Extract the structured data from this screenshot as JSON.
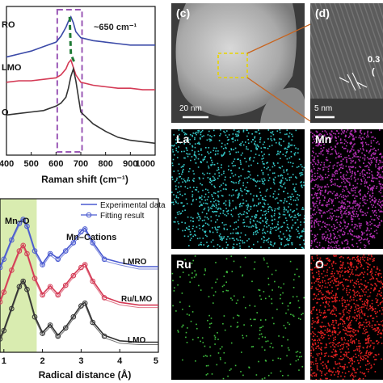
{
  "chart_data": [
    {
      "panel": "raman",
      "type": "line",
      "xlabel": "Raman shift (cm⁻¹)",
      "xlim": [
        400,
        1000
      ],
      "x_ticks": [
        "400",
        "500",
        "600",
        "700",
        "800",
        "900",
        "1000"
      ],
      "annotation": "~650 cm⁻¹",
      "series": [
        {
          "name": "LMRO",
          "color": "#3b4aa8",
          "x": [
            400,
            450,
            500,
            550,
            600,
            620,
            640,
            650,
            660,
            670,
            680,
            700,
            750,
            800,
            850,
            900,
            950,
            1000
          ],
          "y": [
            0.66,
            0.68,
            0.7,
            0.73,
            0.76,
            0.8,
            0.86,
            0.9,
            0.93,
            0.89,
            0.83,
            0.79,
            0.77,
            0.76,
            0.75,
            0.74,
            0.74,
            0.74
          ]
        },
        {
          "name": "Ru/LMO",
          "color": "#d43a55",
          "x": [
            400,
            450,
            500,
            550,
            600,
            620,
            640,
            650,
            660,
            670,
            680,
            700,
            750,
            800,
            850,
            900,
            950,
            1000
          ],
          "y": [
            0.49,
            0.5,
            0.5,
            0.51,
            0.52,
            0.54,
            0.58,
            0.62,
            0.64,
            0.59,
            0.54,
            0.49,
            0.47,
            0.46,
            0.45,
            0.45,
            0.44,
            0.44
          ]
        },
        {
          "name": "LMO",
          "color": "#333333",
          "x": [
            400,
            450,
            500,
            550,
            600,
            620,
            640,
            650,
            660,
            670,
            680,
            700,
            750,
            800,
            850,
            900,
            950,
            1000
          ],
          "y": [
            0.27,
            0.28,
            0.29,
            0.3,
            0.33,
            0.35,
            0.39,
            0.45,
            0.53,
            0.58,
            0.5,
            0.29,
            0.21,
            0.16,
            0.12,
            0.1,
            0.09,
            0.08
          ]
        }
      ],
      "highlight_range": [
        605,
        705
      ],
      "peak_marker_x": [
        655,
        660,
        675
      ],
      "colors": {
        "box": "#9b59b6",
        "marker": "#1e7a34"
      }
    },
    {
      "panel": "exafs",
      "type": "line",
      "xlabel": "Radical distance (Å)",
      "xlim": [
        0.9,
        5
      ],
      "x_ticks": [
        "1",
        "2",
        "3",
        "4",
        "5"
      ],
      "legend": [
        "Experimental data",
        "Fitting result"
      ],
      "legend_position": "top-right",
      "region_labels": [
        "Mn–O",
        "Mn–Cations"
      ],
      "shaded_range": [
        0.9,
        1.85
      ],
      "series": [
        {
          "name": "LMRO",
          "color": "#4a5ad0",
          "x": [
            0.9,
            1.0,
            1.2,
            1.4,
            1.5,
            1.6,
            1.8,
            2.0,
            2.2,
            2.4,
            2.6,
            2.8,
            3.0,
            3.1,
            3.3,
            3.6,
            4.0,
            4.5,
            5.0
          ],
          "y": [
            0.6,
            0.66,
            0.8,
            0.92,
            0.95,
            0.9,
            0.72,
            0.62,
            0.7,
            0.66,
            0.72,
            0.78,
            0.86,
            0.88,
            0.78,
            0.66,
            0.63,
            0.6,
            0.6
          ]
        },
        {
          "name": "Ru/LMO",
          "color": "#d43a55",
          "x": [
            0.9,
            1.0,
            1.2,
            1.4,
            1.5,
            1.6,
            1.8,
            2.0,
            2.2,
            2.4,
            2.6,
            2.8,
            3.0,
            3.1,
            3.3,
            3.6,
            4.0,
            4.5,
            5.0
          ],
          "y": [
            0.35,
            0.42,
            0.58,
            0.72,
            0.76,
            0.7,
            0.52,
            0.4,
            0.46,
            0.4,
            0.47,
            0.54,
            0.6,
            0.62,
            0.5,
            0.38,
            0.34,
            0.32,
            0.32
          ]
        },
        {
          "name": "LMO",
          "color": "#333333",
          "x": [
            0.9,
            1.0,
            1.2,
            1.4,
            1.5,
            1.6,
            1.8,
            2.0,
            2.2,
            2.4,
            2.6,
            2.8,
            3.0,
            3.1,
            3.3,
            3.6,
            4.0,
            4.5,
            5.0
          ],
          "y": [
            0.08,
            0.14,
            0.3,
            0.46,
            0.5,
            0.44,
            0.24,
            0.12,
            0.18,
            0.1,
            0.16,
            0.24,
            0.32,
            0.34,
            0.2,
            0.1,
            0.06,
            0.05,
            0.05
          ]
        }
      ],
      "colors": {
        "shade": "#d9ecb0"
      }
    }
  ],
  "micrographs": {
    "c_label": "(c)",
    "c_scale": "20 nm",
    "d_label": "(d)",
    "d_scale": "5 nm",
    "d_spacing_label": "0.3",
    "d_spacing_paren": "(",
    "maps": [
      {
        "label": "La",
        "color": "#35c8c8",
        "dot_count": 1200
      },
      {
        "label": "Mn",
        "color": "#b42fb4",
        "dot_count": 1200
      },
      {
        "label": "Ru",
        "color": "#3fbf3f",
        "dot_count": 260
      },
      {
        "label": "O",
        "color": "#e02020",
        "dot_count": 1200
      }
    ]
  },
  "colors": {
    "connector": "#c8641e",
    "zoom_box": "#e8d400",
    "map_bg": "#000000"
  }
}
